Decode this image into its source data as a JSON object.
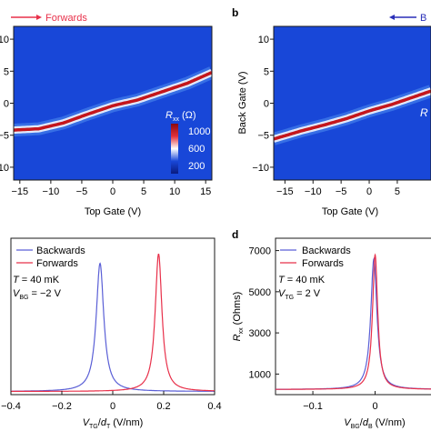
{
  "colors": {
    "map_bg": "#1847d8",
    "ridge_core": "#c4161c",
    "forwards": "#e8304a",
    "backwards": "#5a5fd6",
    "axis": "#1a1a1a"
  },
  "chart_data": [
    {
      "panel": "a",
      "type": "heatmap",
      "arrow_label": "Forwards",
      "arrow_direction": "right",
      "xlabel": "Top Gate (V)",
      "ylabel": "",
      "xlim": [
        -16,
        16
      ],
      "ylim": [
        -12,
        12
      ],
      "xticks": [
        "−15",
        "−10",
        "−5",
        "0",
        "5",
        "10",
        "15"
      ],
      "yticks": [
        "10",
        "5",
        "0",
        "−5",
        "−10"
      ],
      "ridge_x": [
        -16,
        -12,
        -8,
        -4,
        0,
        4,
        8,
        12,
        16
      ],
      "ridge_y": [
        -4.2,
        -4.0,
        -3.1,
        -1.7,
        -0.4,
        0.5,
        1.8,
        3.1,
        4.8
      ],
      "colorbar": {
        "label": "R_xx (Ω)",
        "ticks": [
          "1000",
          "600",
          "200"
        ],
        "range": [
          0,
          1100
        ]
      }
    },
    {
      "panel": "b",
      "type": "heatmap",
      "panel_label": "b",
      "arrow_label": "B",
      "arrow_direction": "left",
      "xlabel": "Top Gate (V)",
      "ylabel": "Back Gate (V)",
      "xlim": [
        -17,
        11
      ],
      "ylim": [
        -12,
        12
      ],
      "xticks": [
        "−15",
        "−10",
        "−5",
        "0",
        "5"
      ],
      "yticks": [
        "10",
        "5",
        "0",
        "−5",
        "−10"
      ],
      "ridge_x": [
        -17,
        -12,
        -8,
        -4,
        0,
        4,
        8,
        11
      ],
      "ridge_y": [
        -5.6,
        -4.3,
        -3.4,
        -2.4,
        -1.2,
        -0.2,
        1.0,
        1.9
      ],
      "inset_text": "R"
    },
    {
      "panel": "c",
      "type": "line",
      "xlabel": "V_TG/d_T (V/nm)",
      "ylabel": "",
      "xlim": [
        -0.4,
        0.4
      ],
      "ylim": [
        0,
        1
      ],
      "xticks": [
        "−0.4",
        "−0.2",
        "0",
        "0.2",
        "0.4"
      ],
      "annotations": [
        "T = 40 mK",
        "V_BG = −2 V"
      ],
      "series": [
        {
          "name": "Backwards",
          "peak_x": -0.05,
          "peak_y": 0.84,
          "width": 0.018,
          "baseline": 0.02
        },
        {
          "name": "Forwards",
          "peak_x": 0.18,
          "peak_y": 0.9,
          "width": 0.016,
          "baseline": 0.02
        }
      ]
    },
    {
      "panel": "d",
      "type": "line",
      "panel_label": "d",
      "xlabel": "V_BG/d_B (V/nm)",
      "ylabel": "R_xx (Ohms)",
      "xlim": [
        -0.16,
        0.1
      ],
      "ylim": [
        0,
        7600
      ],
      "yticks": [
        "7000",
        "5000",
        "3000",
        "1000"
      ],
      "xticks": [
        "−0.1",
        "0"
      ],
      "annotations": [
        "T = 40 mK",
        "V_TG = 2 V"
      ],
      "series": [
        {
          "name": "Backwards",
          "peak_x": -0.002,
          "peak_y": 6600,
          "width": 0.006,
          "baseline": 250
        },
        {
          "name": "Forwards",
          "peak_x": 0.0,
          "peak_y": 6800,
          "width": 0.005,
          "baseline": 250
        }
      ]
    }
  ]
}
